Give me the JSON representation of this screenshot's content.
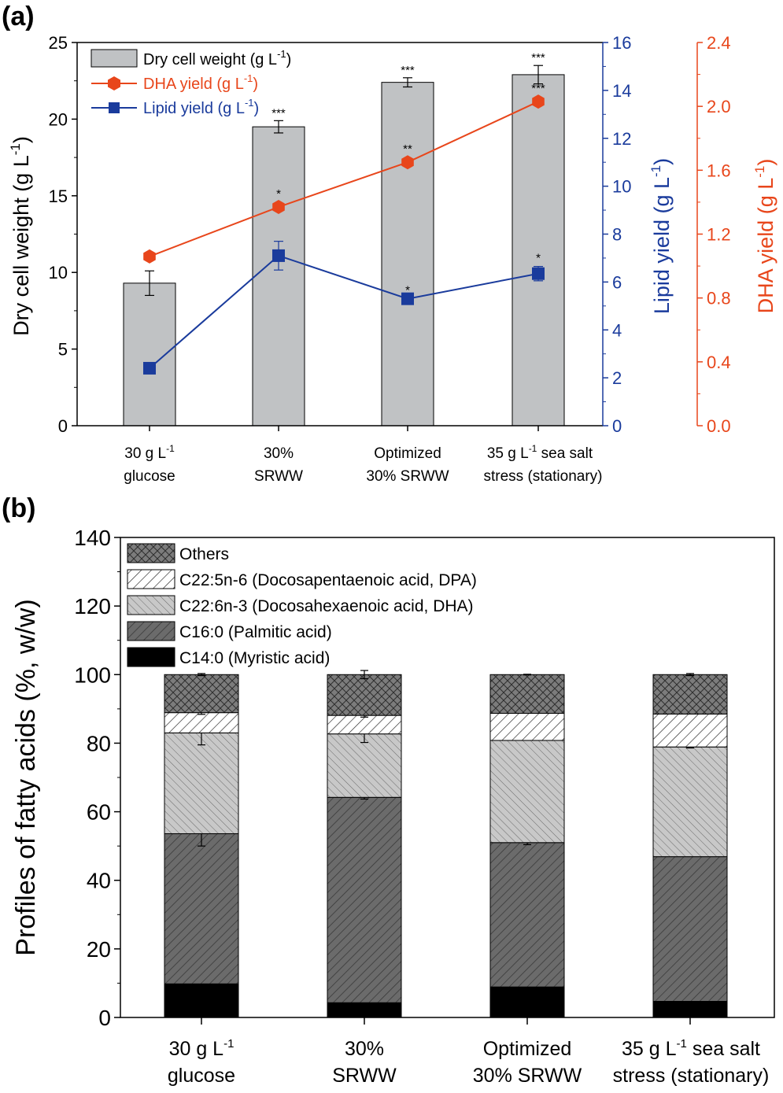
{
  "panel_a": {
    "label": "(a)",
    "legend": {
      "dcw": "Dry cell weight (g L",
      "dha": "DHA yield (g L",
      "lipid": "Lipid yield (g L",
      "unit_sup": "-1",
      "close": ")"
    },
    "axes": {
      "left_label": "Dry cell weight (g L",
      "lipid_label": "Lipid yield (g L",
      "dha_label": "DHA yield (g L",
      "unit_sup": "-1",
      "close": ")"
    },
    "categories": [
      {
        "line1": "30 g L",
        "line1_sup": "-1",
        "line2": "glucose"
      },
      {
        "line1": "30%",
        "line1_sup": "",
        "line2": "SRWW"
      },
      {
        "line1": "Optimized",
        "line1_sup": "",
        "line2": "30% SRWW"
      },
      {
        "line1": "35 g L",
        "line1_sup": "-1",
        "line1_tail": " sea salt",
        "line2": "stress (stationary)"
      }
    ]
  },
  "panel_b": {
    "label": "(b)",
    "ylabel": "Profiles of fatty acids (%, w/w)",
    "categories": [
      {
        "line1": "30 g L",
        "line1_sup": "-1",
        "line2": "glucose"
      },
      {
        "line1": "30%",
        "line1_sup": "",
        "line2": "SRWW"
      },
      {
        "line1": "Optimized",
        "line1_sup": "",
        "line2": "30% SRWW"
      },
      {
        "line1": "35 g L",
        "line1_sup": "-1",
        "line1_tail": " sea salt",
        "line2": "stress (stationary)"
      }
    ],
    "legend": [
      "Others",
      "C22:5n-6 (Docosapentaenoic acid, DPA)",
      "C22:6n-3 (Docosahexaenoic acid, DHA)",
      "C16:0 (Palmitic acid)",
      "C14:0 (Myristic acid)"
    ]
  },
  "colors": {
    "bar_gray": "#c0c2c4",
    "dha_orange": "#e8461b",
    "lipid_blue": "#1a3b9c",
    "dark_stack": "#6b6b6b",
    "light_stack": "#c8c8c8",
    "others_stack": "#7c7c7c"
  },
  "chart_data": [
    {
      "type": "bar",
      "title": "(a)",
      "categories": [
        "30 g L-1 glucose",
        "30% SRWW",
        "Optimized 30% SRWW",
        "35 g L-1 sea salt stress (stationary)"
      ],
      "series": [
        {
          "name": "Dry cell weight (g L-1)",
          "axis": "left",
          "kind": "bar",
          "values": [
            9.3,
            19.5,
            22.4,
            22.9
          ],
          "errors": [
            0.8,
            0.4,
            0.3,
            0.6
          ],
          "significance": [
            "",
            "***",
            "***",
            "***"
          ]
        },
        {
          "name": "DHA yield (g L-1)",
          "axis": "right-dha",
          "kind": "line",
          "values": [
            1.06,
            1.37,
            1.65,
            2.03
          ],
          "errors": [
            0,
            0,
            0,
            0
          ],
          "significance": [
            "",
            "*",
            "**",
            "***"
          ]
        },
        {
          "name": "Lipid yield (g L-1)",
          "axis": "right-lipid",
          "kind": "line",
          "values": [
            2.4,
            7.1,
            5.3,
            6.35
          ],
          "errors": [
            0,
            0.6,
            0,
            0.3
          ],
          "significance": [
            "",
            "",
            "*",
            "*"
          ]
        }
      ],
      "ylabel": "Dry cell weight (g L-1)",
      "ylim": [
        0,
        25
      ],
      "yticks": [
        0,
        5,
        10,
        15,
        20,
        25
      ],
      "y2label": "Lipid yield (g L-1)",
      "y2lim": [
        0,
        16
      ],
      "y2ticks": [
        0,
        2,
        4,
        6,
        8,
        10,
        12,
        14,
        16
      ],
      "y3label": "DHA yield (g L-1)",
      "y3lim": [
        0,
        2.4
      ],
      "y3ticks": [
        "0.0",
        "0.4",
        "0.8",
        "1.2",
        "1.6",
        "2.0",
        "2.4"
      ],
      "legend_position": "top-left"
    },
    {
      "type": "bar",
      "stacked": true,
      "title": "(b)",
      "categories": [
        "30 g L-1 glucose",
        "30% SRWW",
        "Optimized 30% SRWW",
        "35 g L-1 sea salt stress (stationary)"
      ],
      "series": [
        {
          "name": "C14:0 (Myristic acid)",
          "values": [
            9.8,
            4.3,
            8.9,
            4.7
          ],
          "errors": [
            0.6,
            0,
            0.4,
            0
          ]
        },
        {
          "name": "C16:0 (Palmitic acid)",
          "values": [
            43.8,
            59.9,
            42.1,
            42.2
          ],
          "errors": [
            3.6,
            0.5,
            0.6,
            0
          ]
        },
        {
          "name": "C22:6n-3 (Docosahexaenoic acid, DHA)",
          "values": [
            29.4,
            18.5,
            29.8,
            32.0
          ],
          "errors": [
            3.5,
            2.5,
            0,
            0.3
          ]
        },
        {
          "name": "C22:5n-6 (Docosapentaenoic acid, DPA)",
          "values": [
            5.9,
            5.4,
            7.9,
            9.6
          ],
          "errors": [
            0.5,
            0.5,
            0,
            0
          ]
        },
        {
          "name": "Others",
          "values": [
            11.1,
            11.9,
            11.3,
            11.5
          ],
          "errors": [
            0.3,
            1.2,
            0.1,
            0.3
          ]
        }
      ],
      "ylabel": "Profiles of fatty acids (%, w/w)",
      "ylim": [
        0,
        140
      ],
      "yticks": [
        0,
        20,
        40,
        60,
        80,
        100,
        120,
        140
      ],
      "legend_position": "top-left"
    }
  ]
}
